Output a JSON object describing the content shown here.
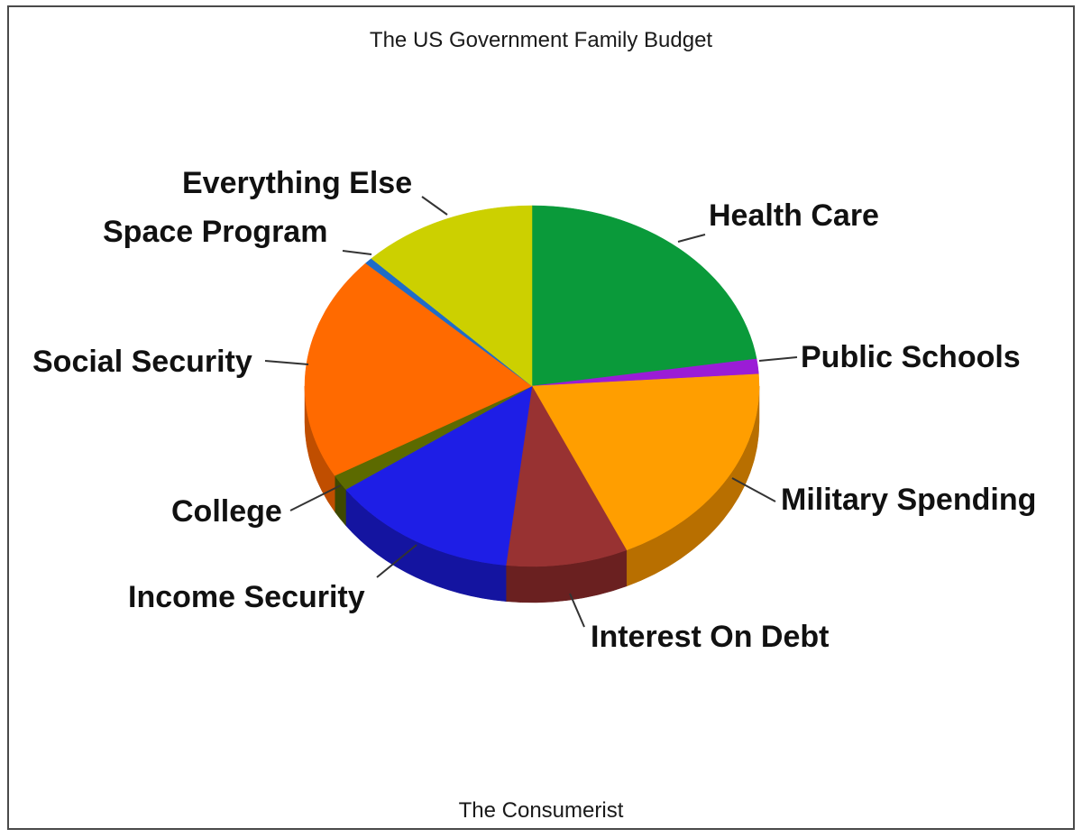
{
  "chart_data": {
    "type": "pie",
    "title": "The US Government Family Budget",
    "footer": "The Consumerist",
    "style": "3d",
    "slices": [
      {
        "label": "Health Care",
        "value": 23.5,
        "color": "#0a9a3a",
        "side_color": "#066b28"
      },
      {
        "label": "Public Schools",
        "value": 1.4,
        "color": "#9b1cd6",
        "side_color": "#6a1294"
      },
      {
        "label": "Military Spending",
        "value": 20.0,
        "color": "#ff9e00",
        "side_color": "#b86f00"
      },
      {
        "label": "Interest On Debt",
        "value": 9.0,
        "color": "#983232",
        "side_color": "#6a2020"
      },
      {
        "label": "Income Security",
        "value": 14.0,
        "color": "#1e1ee6",
        "side_color": "#1414a0"
      },
      {
        "label": "College",
        "value": 1.5,
        "color": "#5c6a00",
        "side_color": "#3e4800"
      },
      {
        "label": "Social Security",
        "value": 21.0,
        "color": "#ff6a00",
        "side_color": "#c04e00"
      },
      {
        "label": "Space Program",
        "value": 0.6,
        "color": "#1f6cc8",
        "side_color": "#144a8c"
      },
      {
        "label": "Everything Else",
        "value": 13.0,
        "color": "#ccd000",
        "side_color": "#8f9200"
      }
    ]
  }
}
